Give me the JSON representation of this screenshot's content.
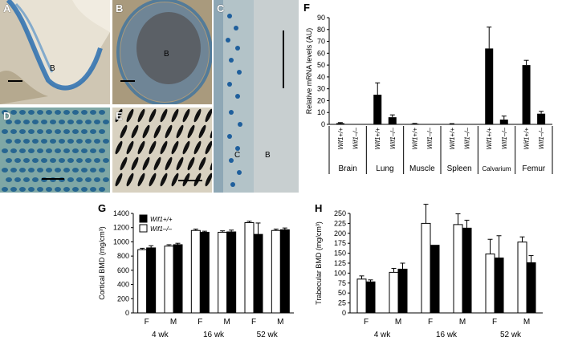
{
  "panels": {
    "A": {
      "label": "A",
      "inner_label": "B"
    },
    "B": {
      "label": "B",
      "inner_label": "B"
    },
    "C": {
      "label": "C",
      "inner_labels": [
        "C",
        "B"
      ]
    },
    "D": {
      "label": "D"
    },
    "E": {
      "label": "E"
    },
    "F": {
      "label": "F"
    },
    "G": {
      "label": "G"
    },
    "H": {
      "label": "H"
    }
  },
  "colors": {
    "stain_blue": "#1f6ea8",
    "tissue_beige": "#e6dfd0",
    "bar_black": "#000000",
    "bar_white": "#ffffff"
  },
  "chart_data": [
    {
      "id": "F",
      "type": "bar",
      "ylabel": "Relative mRNA levels (AU)",
      "ylim": [
        0,
        90
      ],
      "yticks": [
        0,
        10,
        20,
        30,
        40,
        50,
        60,
        70,
        80,
        90
      ],
      "genotypes": [
        "Wif1+/+",
        "Wif1–/–"
      ],
      "groups": [
        "Brain",
        "Lung",
        "Muscle",
        "Spleen",
        "Calvarium",
        "Femur"
      ],
      "values": [
        [
          1,
          0
        ],
        [
          25,
          6
        ],
        [
          0.5,
          0
        ],
        [
          0.3,
          0
        ],
        [
          64,
          4
        ],
        [
          50,
          9
        ]
      ],
      "errors": [
        [
          0.5,
          0
        ],
        [
          10,
          2
        ],
        [
          0.3,
          0
        ],
        [
          0.3,
          0
        ],
        [
          18,
          3
        ],
        [
          4,
          2
        ]
      ]
    },
    {
      "id": "G",
      "type": "bar",
      "ylabel": "Cortical BMD (mg/cm³)",
      "ylim": [
        0,
        1400
      ],
      "yticks": [
        0,
        200,
        400,
        600,
        800,
        1000,
        1200,
        1400
      ],
      "series": [
        {
          "name": "Wif1+/+",
          "color": "#000000"
        },
        {
          "name": "Wif1–/–",
          "color": "#ffffff"
        }
      ],
      "sex_labels": [
        "F",
        "M",
        "F",
        "M",
        "F",
        "M"
      ],
      "age_labels": [
        "4 wk",
        "16 wk",
        "52 wk"
      ],
      "white": [
        890,
        940,
        1160,
        1135,
        1270,
        1160
      ],
      "black": [
        915,
        960,
        1135,
        1140,
        1105,
        1170
      ],
      "white_err": [
        20,
        20,
        20,
        20,
        20,
        20
      ],
      "black_err": [
        30,
        20,
        15,
        25,
        160,
        25
      ]
    },
    {
      "id": "H",
      "type": "bar",
      "ylabel": "Trabecular BMD (mg/cm³)",
      "ylim": [
        0,
        250
      ],
      "yticks": [
        0,
        25,
        50,
        75,
        100,
        125,
        150,
        175,
        200,
        225,
        250
      ],
      "sex_labels": [
        "F",
        "M",
        "F",
        "M",
        "F",
        "M"
      ],
      "age_labels": [
        "4 wk",
        "16 wk",
        "52 wk"
      ],
      "white": [
        85,
        102,
        225,
        222,
        148,
        178
      ],
      "black": [
        78,
        110,
        170,
        213,
        138,
        126
      ],
      "white_err": [
        8,
        10,
        48,
        27,
        37,
        13
      ],
      "black_err": [
        5,
        15,
        0,
        20,
        56,
        18
      ]
    }
  ]
}
